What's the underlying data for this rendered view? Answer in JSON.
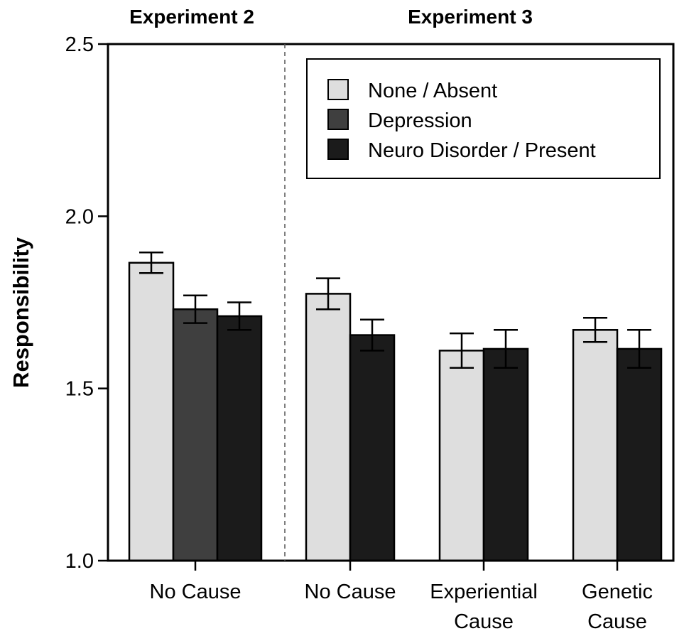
{
  "chart_data": {
    "type": "bar",
    "ylabel": "Responsibility",
    "ylim": [
      1.0,
      2.5
    ],
    "yticks": [
      1.0,
      1.5,
      2.0,
      2.5
    ],
    "ytick_labels": [
      "1.0",
      "1.5",
      "2.0",
      "2.5"
    ],
    "colors": {
      "none": "#dedede",
      "depression": "#3f3f3f",
      "neuro": "#1b1b1b"
    },
    "legend": {
      "placement": "top-right",
      "entries": [
        {
          "key": "none",
          "label": "None / Absent"
        },
        {
          "key": "depression",
          "label": "Depression"
        },
        {
          "key": "neuro",
          "label": "Neuro Disorder / Present"
        }
      ]
    },
    "panels": [
      {
        "title": "Experiment 2"
      },
      {
        "title": "Experiment 3"
      }
    ],
    "groups": [
      {
        "panel": 0,
        "label_lines": [
          "No Cause"
        ],
        "bars": [
          {
            "series": "none",
            "value": 1.865,
            "err": 0.03
          },
          {
            "series": "depression",
            "value": 1.73,
            "err": 0.04
          },
          {
            "series": "neuro",
            "value": 1.71,
            "err": 0.04
          }
        ]
      },
      {
        "panel": 1,
        "label_lines": [
          "No Cause"
        ],
        "bars": [
          {
            "series": "none",
            "value": 1.775,
            "err": 0.045
          },
          {
            "series": "neuro",
            "value": 1.655,
            "err": 0.045
          }
        ]
      },
      {
        "panel": 1,
        "label_lines": [
          "Experiential",
          "Cause"
        ],
        "bars": [
          {
            "series": "none",
            "value": 1.61,
            "err": 0.05
          },
          {
            "series": "neuro",
            "value": 1.615,
            "err": 0.055
          }
        ]
      },
      {
        "panel": 1,
        "label_lines": [
          "Genetic",
          "Cause"
        ],
        "bars": [
          {
            "series": "none",
            "value": 1.67,
            "err": 0.035
          },
          {
            "series": "neuro",
            "value": 1.615,
            "err": 0.055
          }
        ]
      }
    ]
  }
}
